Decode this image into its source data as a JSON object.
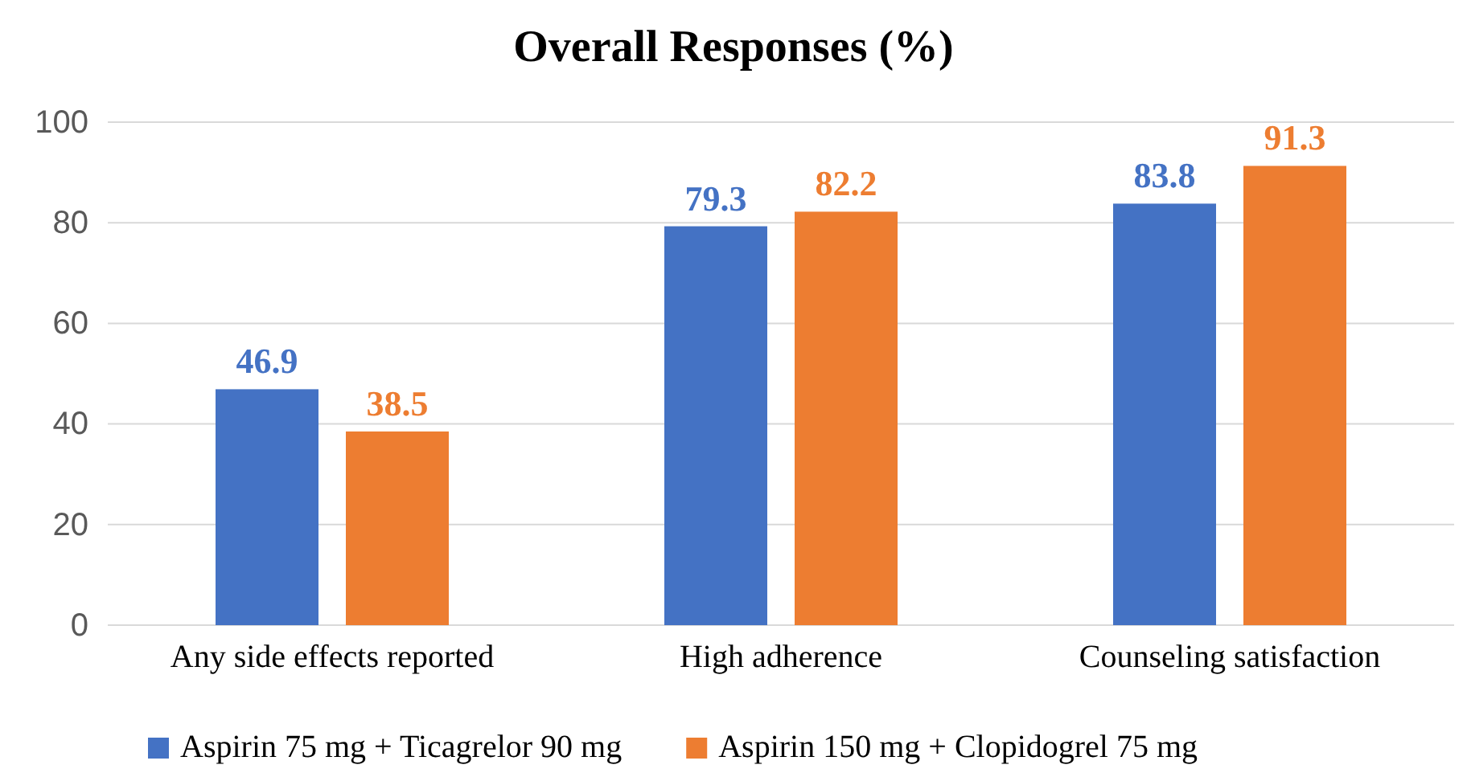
{
  "chart_data": {
    "type": "bar",
    "title": "Overall Responses (%)",
    "categories": [
      "Any side effects reported",
      "High adherence",
      "Counseling satisfaction"
    ],
    "series": [
      {
        "name": "Aspirin 75 mg + Ticagrelor 90 mg",
        "color": "#4472c4",
        "values": [
          46.9,
          79.3,
          83.8
        ]
      },
      {
        "name": "Aspirin 150 mg + Clopidogrel 75 mg",
        "color": "#ed7d31",
        "values": [
          38.5,
          82.2,
          91.3
        ]
      }
    ],
    "ylim": [
      0,
      100
    ],
    "yticks": [
      0,
      20,
      40,
      60,
      80,
      100
    ],
    "grid": "y",
    "legend": "bottom",
    "data_labels": true
  }
}
